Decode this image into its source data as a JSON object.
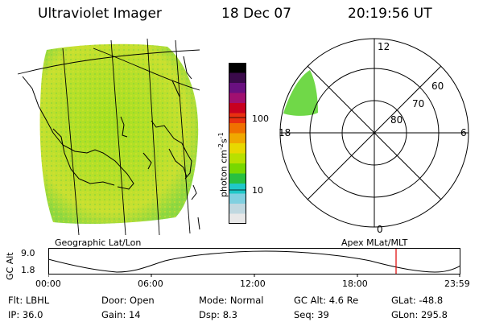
{
  "header": {
    "title": "Ultraviolet Imager",
    "date": "18 Dec 07",
    "time": "20:19:56 UT"
  },
  "map": {
    "caption": "Geographic Lat/Lon"
  },
  "polar": {
    "caption": "Apex MLat/MLT",
    "mlt_labels": {
      "top": "12",
      "left": "18",
      "right": "6",
      "bottom": "0"
    },
    "lat_labels": [
      "60",
      "70",
      "80"
    ]
  },
  "colorbar": {
    "unit_label": "photon cm",
    "unit_exp1": "-2",
    "unit_mid": "s",
    "unit_exp2": "-1",
    "ticks": [
      "100",
      "10"
    ],
    "colors": [
      "#000000",
      "#3a0a4a",
      "#6a1080",
      "#a01070",
      "#c80020",
      "#e83010",
      "#f07000",
      "#f0a800",
      "#e8d800",
      "#b8e000",
      "#78d800",
      "#28c040",
      "#20c8c8",
      "#80d0e0",
      "#c0d8e0",
      "#e8e8e8"
    ]
  },
  "altitude_plot": {
    "axis_label": "GC Alt",
    "y_top": "9.0",
    "y_bottom": "1.8",
    "x_ticks": [
      "00:00",
      "06:00",
      "12:00",
      "18:00",
      "23:59"
    ],
    "cursor_color": "#e00000"
  },
  "info": {
    "row1": [
      {
        "key": "Flt:",
        "val": "LBHL"
      },
      {
        "key": "Door:",
        "val": "Open"
      },
      {
        "key": "Mode:",
        "val": "Normal"
      },
      {
        "key": "GC Alt:",
        "val": "4.6 Re"
      },
      {
        "key": "GLat:",
        "val": "-48.8"
      }
    ],
    "row2": [
      {
        "key": "IP:",
        "val": "36.0"
      },
      {
        "key": "Gain:",
        "val": "14"
      },
      {
        "key": "Dsp:",
        "val": "8.3"
      },
      {
        "key": "Seq:",
        "val": "39"
      },
      {
        "key": "GLon:",
        "val": "295.8"
      }
    ]
  }
}
